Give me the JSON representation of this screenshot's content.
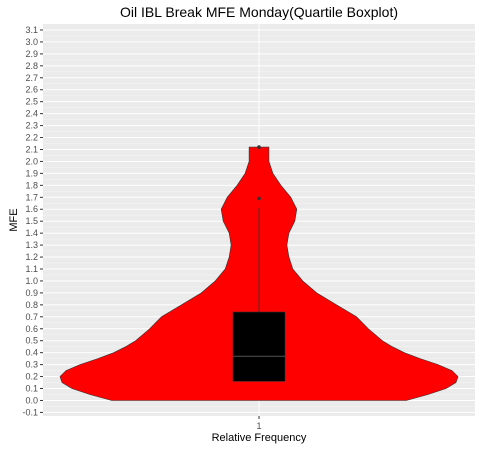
{
  "chart_data": {
    "type": "violin",
    "title": "Oil IBL Break MFE Monday(Quartile Boxplot)",
    "xlabel": "Relative Frequency",
    "ylabel": "MFE",
    "x_categories": [
      "1"
    ],
    "y_ticks": [
      "-0.1",
      "0.0",
      "0.1",
      "0.2",
      "0.3",
      "0.4",
      "0.5",
      "0.6",
      "0.7",
      "0.8",
      "0.9",
      "1.0",
      "1.1",
      "1.2",
      "1.3",
      "1.4",
      "1.5",
      "1.6",
      "1.7",
      "1.8",
      "1.9",
      "2.0",
      "2.1",
      "2.2",
      "2.3",
      "2.4",
      "2.5",
      "2.6",
      "2.7",
      "2.8",
      "2.9",
      "3.0",
      "3.1"
    ],
    "ylim": [
      -0.13,
      3.15
    ],
    "violin_color": "#ff0000",
    "box_color": "#000000",
    "violin_profile": [
      [
        0.0,
        0.74
      ],
      [
        0.05,
        0.85
      ],
      [
        0.1,
        0.94
      ],
      [
        0.15,
        0.99
      ],
      [
        0.2,
        1.0
      ],
      [
        0.25,
        0.97
      ],
      [
        0.3,
        0.9
      ],
      [
        0.35,
        0.81
      ],
      [
        0.4,
        0.73
      ],
      [
        0.45,
        0.67
      ],
      [
        0.5,
        0.62
      ],
      [
        0.6,
        0.55
      ],
      [
        0.7,
        0.49
      ],
      [
        0.8,
        0.39
      ],
      [
        0.9,
        0.29
      ],
      [
        1.0,
        0.22
      ],
      [
        1.1,
        0.17
      ],
      [
        1.2,
        0.15
      ],
      [
        1.3,
        0.14
      ],
      [
        1.4,
        0.15
      ],
      [
        1.5,
        0.18
      ],
      [
        1.6,
        0.19
      ],
      [
        1.7,
        0.16
      ],
      [
        1.8,
        0.11
      ],
      [
        1.9,
        0.07
      ],
      [
        2.0,
        0.05
      ],
      [
        2.1,
        0.05
      ],
      [
        2.12,
        0.05
      ]
    ],
    "box": {
      "q1": 0.16,
      "median": 0.37,
      "q3": 0.74,
      "whisker_low": 0.16,
      "whisker_high": 1.61
    },
    "outliers": [
      1.69,
      2.12
    ]
  }
}
